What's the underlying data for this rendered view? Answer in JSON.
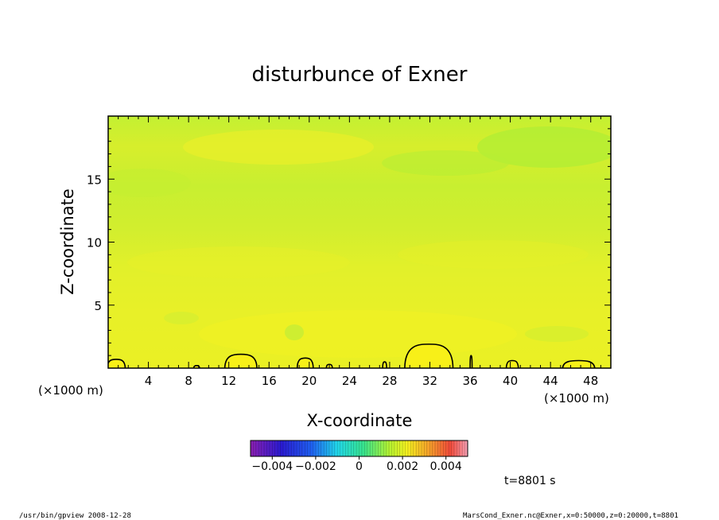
{
  "chart_data": {
    "type": "heatmap",
    "title": "disturbunce of Exner",
    "xlabel": "X-coordinate",
    "ylabel": "Z-coordinate",
    "x_unit": "(×1000 m)",
    "y_unit": "(×1000 m)",
    "xlim": [
      0,
      50
    ],
    "ylim": [
      0,
      20
    ],
    "x_ticks": [
      4,
      8,
      12,
      16,
      20,
      24,
      28,
      32,
      36,
      40,
      44,
      48
    ],
    "y_ticks": [
      5,
      10,
      15
    ],
    "colorbar": {
      "range": [
        -0.005,
        0.005
      ],
      "tick_values": [
        -0.004,
        -0.002,
        0,
        0.002,
        0.004
      ],
      "tick_labels": [
        "−0.004",
        "−0.002",
        "0",
        "0.002",
        "0.004"
      ]
    },
    "zero_contour_bumps": [
      {
        "x_center": 0.8,
        "half_width": 0.9,
        "height": 0.7
      },
      {
        "x_center": 8.8,
        "half_width": 0.3,
        "height": 0.2
      },
      {
        "x_center": 13.2,
        "half_width": 1.6,
        "height": 1.1
      },
      {
        "x_center": 19.6,
        "half_width": 0.8,
        "height": 0.8
      },
      {
        "x_center": 22.0,
        "half_width": 0.3,
        "height": 0.3
      },
      {
        "x_center": 27.5,
        "half_width": 0.2,
        "height": 0.5
      },
      {
        "x_center": 31.9,
        "half_width": 2.4,
        "height": 1.9
      },
      {
        "x_center": 36.1,
        "half_width": 0.1,
        "height": 1.0
      },
      {
        "x_center": 40.2,
        "half_width": 0.6,
        "height": 0.6
      },
      {
        "x_center": 46.8,
        "half_width": 1.6,
        "height": 0.6
      }
    ],
    "field_description": "near-uniform slightly positive field (yellow-green) with weak horizontal banding",
    "grid": false
  },
  "annotations": {
    "time_label": "t=8801 s",
    "footer_left": "/usr/bin/gpview   2008-12-28",
    "footer_right": "MarsCond_Exner.nc@Exner,x=0:50000,z=0:20000,t=8801"
  }
}
